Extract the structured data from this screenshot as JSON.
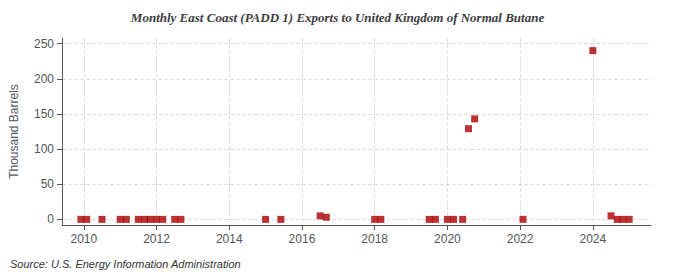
{
  "chart_data": {
    "type": "scatter",
    "title": "Monthly East Coast (PADD 1) Exports to United Kingdom of Normal Butane",
    "ylabel": "Thousand Barrels",
    "annotation": "Source: U.S. Energy Information Administration",
    "x": [
      2009.92,
      2010.08,
      2010.5,
      2011.0,
      2011.17,
      2011.5,
      2011.67,
      2011.83,
      2012.0,
      2012.17,
      2012.5,
      2012.67,
      2015.0,
      2015.42,
      2016.5,
      2016.67,
      2018.0,
      2018.17,
      2019.5,
      2019.67,
      2020.0,
      2020.17,
      2020.42,
      2020.58,
      2020.75,
      2022.08,
      2024.0,
      2024.5,
      2024.67,
      2024.83,
      2025.0
    ],
    "values": [
      0,
      0,
      0,
      0,
      0,
      0,
      0,
      0,
      0,
      0,
      0,
      0,
      0,
      0,
      5,
      3,
      0,
      0,
      0,
      0,
      0,
      0,
      0,
      129,
      143,
      0,
      240,
      5,
      0,
      0,
      0
    ],
    "color": "#aa0000",
    "marker": "square",
    "xlim": [
      2009.4,
      2025.6
    ],
    "xticks": [
      2010,
      2012,
      2014,
      2016,
      2018,
      2020,
      2022,
      2024
    ],
    "ylim": [
      -8,
      258
    ],
    "yticks": [
      0,
      50,
      100,
      150,
      200,
      250
    ],
    "grid": true
  }
}
